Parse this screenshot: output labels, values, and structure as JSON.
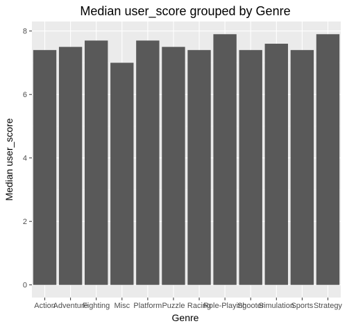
{
  "chart_data": {
    "type": "bar",
    "title": "Median user_score grouped by Genre",
    "xlabel": "Genre",
    "ylabel": "Median user_score",
    "categories": [
      "Action",
      "Adventure",
      "Fighting",
      "Misc",
      "Platform",
      "Puzzle",
      "Racing",
      "Role-Playing",
      "Shooter",
      "Simulation",
      "Sports",
      "Strategy"
    ],
    "values": [
      7.4,
      7.5,
      7.7,
      7.0,
      7.7,
      7.5,
      7.4,
      7.9,
      7.4,
      7.6,
      7.4,
      7.9
    ],
    "ylim": [
      -0.4,
      8.3
    ],
    "yticks": [
      0,
      2,
      4,
      6,
      8
    ],
    "grid": true,
    "colors": {
      "bar": "#595959",
      "panel": "#ebebeb",
      "grid_major": "#ffffff",
      "grid_minor": "#f2f2f2"
    }
  }
}
